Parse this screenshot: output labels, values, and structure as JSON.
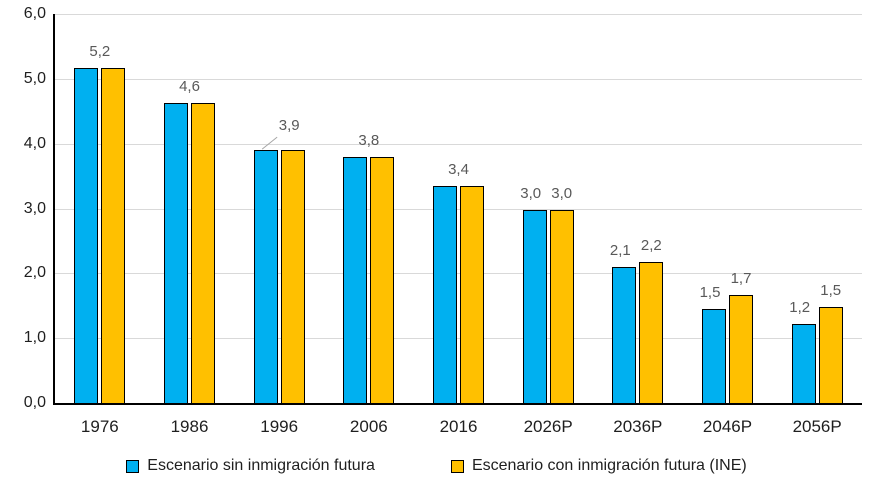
{
  "chart_data": {
    "type": "bar",
    "title": "",
    "categories": [
      "1976",
      "1986",
      "1996",
      "2006",
      "2016",
      "2026P",
      "2036P",
      "2046P",
      "2056P"
    ],
    "series": [
      {
        "name": "Escenario sin inmigración futura",
        "color": "#00B0F0",
        "values": [
          5.17,
          4.63,
          3.9,
          3.8,
          3.35,
          2.97,
          2.1,
          1.45,
          1.22
        ],
        "labels": [
          "5,2",
          "4,6",
          "3,9",
          "3,8",
          "3,4",
          "3,0",
          "2,1",
          "1,5",
          "1,2"
        ]
      },
      {
        "name": "Escenario con inmigración futura (INE)",
        "color": "#FFC000",
        "values": [
          5.17,
          4.63,
          3.9,
          3.8,
          3.35,
          2.97,
          2.18,
          1.67,
          1.48
        ],
        "labels": [
          "5,2",
          "4,6",
          "3,9",
          "3,8",
          "3,4",
          "3,0",
          "2,2",
          "1,7",
          "1,5"
        ]
      }
    ],
    "label_display": [
      "single",
      "single",
      "single_leader",
      "single",
      "single",
      "pair",
      "pair",
      "pair",
      "pair"
    ],
    "y_ticks": [
      "0,0",
      "1,0",
      "2,0",
      "3,0",
      "4,0",
      "5,0",
      "6,0"
    ],
    "ylim": [
      0,
      6
    ],
    "xlabel": "",
    "ylabel": "",
    "grid": true,
    "legend_position": "bottom"
  },
  "styles": {
    "background": "#FFFFFF",
    "axis_color": "#000000",
    "grid_color": "#D9D9D9",
    "bar_border_color": "#000000",
    "data_label_color": "#595959",
    "tick_label_color": "#1F1F1F",
    "leader_line_color": "#A6A6A6"
  }
}
